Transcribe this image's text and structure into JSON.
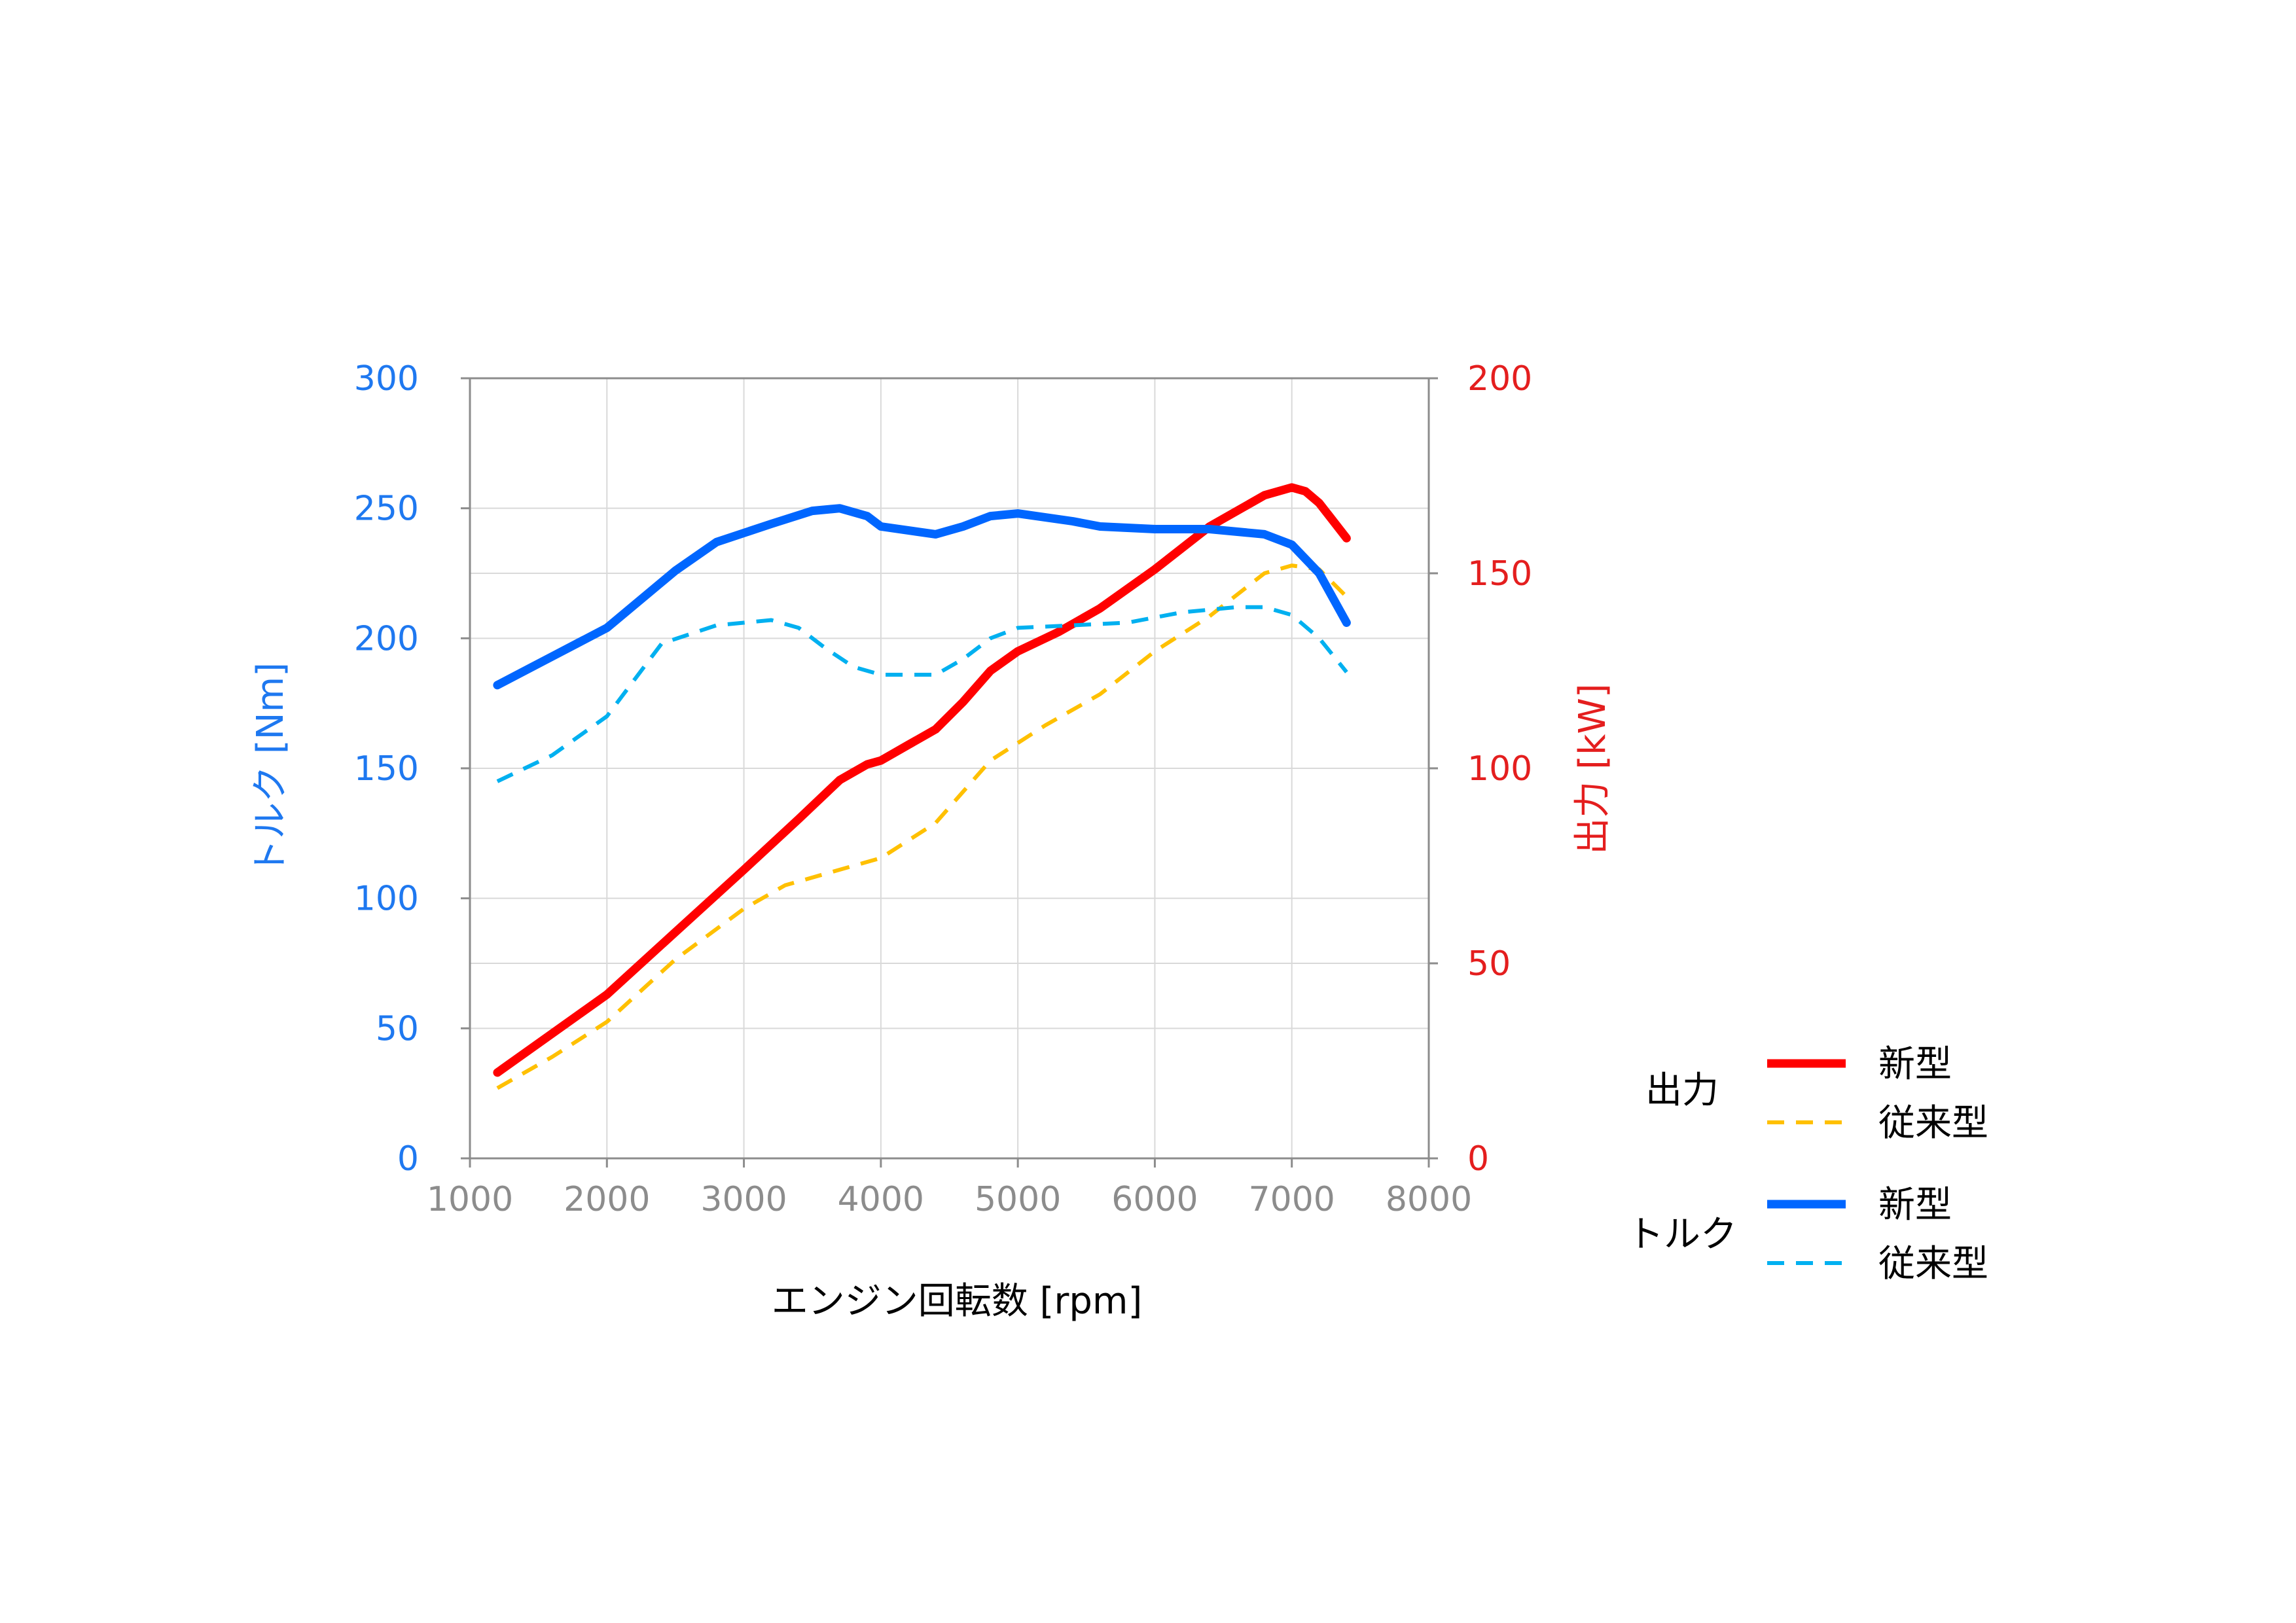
{
  "colors": {
    "left_axis": "#1E78F0",
    "right_axis": "#E41E1E",
    "x_tick": "#8C8C8C",
    "grid": "#D9D9D9",
    "frame": "#8C8C8C",
    "text": "#000000"
  },
  "chart_data": {
    "type": "line",
    "xlabel": "エンジン回転数 [rpm]",
    "ylabel_left": "トルク [Nm]",
    "ylabel_right": "出力 [kW]",
    "xlim": [
      1000,
      8000
    ],
    "ylim_left": [
      0,
      300
    ],
    "ylim_right": [
      0,
      200
    ],
    "x_ticks": [
      "1000",
      "2000",
      "3000",
      "4000",
      "5000",
      "6000",
      "7000",
      "8000"
    ],
    "y_ticks_left": [
      "0",
      "50",
      "100",
      "150",
      "200",
      "250",
      "300"
    ],
    "y_ticks_right": [
      "0",
      "50",
      "100",
      "150",
      "200"
    ],
    "grid": true,
    "legend_position": "right",
    "legend_groups": [
      {
        "label": "出力",
        "entries": [
          "新型",
          "従来型"
        ]
      },
      {
        "label": "トルク",
        "entries": [
          "新型",
          "従来型"
        ]
      }
    ],
    "series": [
      {
        "name": "新型",
        "group": "出力",
        "axis": "right",
        "color": "#FF0000",
        "style": "solid",
        "x": [
          1200,
          1600,
          2000,
          2500,
          3000,
          3400,
          3700,
          3900,
          4000,
          4200,
          4400,
          4600,
          4800,
          5000,
          5300,
          5600,
          6000,
          6400,
          6800,
          7000,
          7100,
          7200,
          7400
        ],
        "y": [
          22,
          32,
          42,
          58,
          74,
          87,
          97,
          101,
          102,
          106,
          110,
          117,
          125,
          130,
          135,
          141,
          151,
          162,
          170,
          172,
          171,
          168,
          159
        ]
      },
      {
        "name": "従来型",
        "group": "出力",
        "axis": "right",
        "color": "#FFC000",
        "style": "dashed",
        "x": [
          1200,
          1600,
          2000,
          2500,
          3000,
          3300,
          3600,
          4000,
          4400,
          4800,
          5200,
          5600,
          6000,
          6400,
          6800,
          7000,
          7200,
          7400
        ],
        "y": [
          18,
          26,
          35,
          51,
          64,
          70,
          73,
          77,
          86,
          102,
          111,
          119,
          130,
          139,
          150,
          152,
          151,
          144
        ]
      },
      {
        "name": "新型",
        "group": "トルク",
        "axis": "left",
        "color": "#0066FF",
        "style": "solid",
        "x": [
          1200,
          1600,
          2000,
          2500,
          2800,
          3200,
          3500,
          3700,
          3900,
          4000,
          4400,
          4600,
          4800,
          5000,
          5400,
          5600,
          6000,
          6400,
          6800,
          7000,
          7200,
          7400
        ],
        "y": [
          182,
          193,
          204,
          226,
          237,
          244,
          249,
          250,
          247,
          243,
          240,
          243,
          247,
          248,
          245,
          243,
          242,
          242,
          240,
          236,
          225,
          206
        ]
      },
      {
        "name": "従来型",
        "group": "トルク",
        "axis": "left",
        "color": "#00B0F0",
        "style": "dashed",
        "x": [
          1200,
          1600,
          2000,
          2400,
          2800,
          3200,
          3400,
          3600,
          3800,
          4000,
          4400,
          4600,
          4800,
          5000,
          5400,
          5800,
          6200,
          6600,
          6800,
          7000,
          7200,
          7400
        ],
        "y": [
          145,
          155,
          170,
          198,
          205,
          207,
          204,
          196,
          189,
          186,
          186,
          192,
          200,
          204,
          205,
          206,
          210,
          212,
          212,
          209,
          200,
          187
        ]
      }
    ]
  }
}
